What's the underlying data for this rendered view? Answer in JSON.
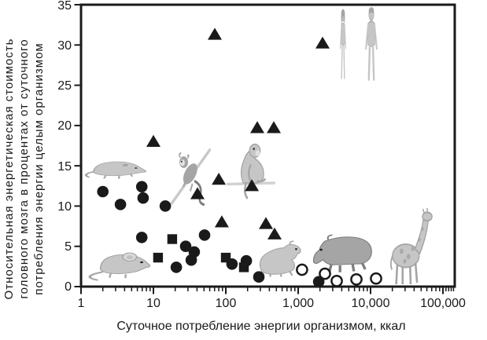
{
  "figure": {
    "background": "#ffffff",
    "ink_color": "#1a1a1a",
    "illustration_light": "#c6c6c6",
    "illustration_mid": "#a5a5a5",
    "illustration_dark": "#7e7e7e"
  },
  "chart_data": {
    "type": "scatter",
    "title": "",
    "xlabel": "Суточное потребление энергии организмом, ккал",
    "ylabel_lines": [
      "Относительная энергетическая стоимость",
      "головного мозга в процентах от суточного",
      "потребления энергии целым организмом"
    ],
    "x_scale": "log",
    "xlim": [
      1,
      145000
    ],
    "ylim": [
      0,
      35
    ],
    "x_ticks": [
      "1",
      "10",
      "100",
      "1,000",
      "10,000",
      "100,000"
    ],
    "x_tick_values": [
      1,
      10,
      100,
      1000,
      10000,
      100000
    ],
    "y_ticks": [
      0,
      5,
      10,
      15,
      20,
      25,
      30,
      35
    ],
    "grid": false,
    "legend": "none",
    "series": [
      {
        "name": "filled-circle",
        "marker": "circle",
        "fill": "solid",
        "points": [
          [
            2.0,
            11.8
          ],
          [
            3.5,
            10.2
          ],
          [
            6.9,
            12.4
          ],
          [
            7.2,
            11.0
          ],
          [
            14.6,
            10.0
          ],
          [
            6.9,
            6.1
          ],
          [
            20.7,
            2.4
          ],
          [
            27.9,
            5.0
          ],
          [
            36.7,
            4.3
          ],
          [
            33.3,
            3.3
          ],
          [
            50.9,
            6.4
          ],
          [
            122,
            2.8
          ],
          [
            192,
            3.2
          ],
          [
            286,
            1.2
          ],
          [
            1920,
            0.6
          ]
        ]
      },
      {
        "name": "filled-square",
        "marker": "square",
        "fill": "solid",
        "points": [
          [
            11.6,
            3.6
          ],
          [
            18.2,
            5.9
          ],
          [
            100,
            3.6
          ],
          [
            178,
            2.4
          ]
        ]
      },
      {
        "name": "filled-triangle",
        "marker": "triangle",
        "fill": "solid",
        "points": [
          [
            10,
            18.0
          ],
          [
            40.6,
            11.5
          ],
          [
            70.5,
            31.3
          ],
          [
            80,
            13.3
          ],
          [
            88,
            8.0
          ],
          [
            229,
            12.5
          ],
          [
            272,
            19.7
          ],
          [
            358,
            7.8
          ],
          [
            460,
            19.7
          ],
          [
            472,
            6.5
          ],
          [
            2170,
            30.2
          ]
        ]
      },
      {
        "name": "open-circle",
        "marker": "circle",
        "fill": "open",
        "points": [
          [
            1130,
            2.1
          ],
          [
            2340,
            1.6
          ],
          [
            3410,
            0.7
          ],
          [
            6370,
            0.9
          ],
          [
            11900,
            1.0
          ]
        ]
      }
    ],
    "illustrations": [
      {
        "name": "shrew",
        "x": 108,
        "y": 196,
        "w": 78,
        "h": 36
      },
      {
        "name": "mouse",
        "x": 112,
        "y": 310,
        "w": 80,
        "h": 48
      },
      {
        "name": "marmoset",
        "x": 216,
        "y": 188,
        "w": 55,
        "h": 74
      },
      {
        "name": "macaque",
        "x": 288,
        "y": 176,
        "w": 62,
        "h": 76
      },
      {
        "name": "agouti",
        "x": 325,
        "y": 298,
        "w": 62,
        "h": 55
      },
      {
        "name": "capybara",
        "x": 397,
        "y": 286,
        "w": 80,
        "h": 64
      },
      {
        "name": "giraffe",
        "x": 490,
        "y": 266,
        "w": 68,
        "h": 98
      },
      {
        "name": "human-female",
        "x": 423,
        "y": 12,
        "w": 26,
        "h": 90
      },
      {
        "name": "human-male",
        "x": 452,
        "y": 10,
        "w": 40,
        "h": 93
      }
    ]
  }
}
